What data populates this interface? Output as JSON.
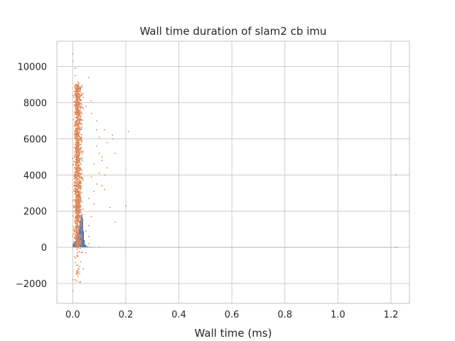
{
  "chart_data": {
    "type": "scatter",
    "title": "Wall time duration of slam2 cb imu",
    "xlabel": "Wall time (ms)",
    "ylabel": "",
    "xlim": [
      -0.06,
      1.27
    ],
    "ylim": [
      -3100,
      11400
    ],
    "grid": true,
    "x_ticks": [
      0.0,
      0.2,
      0.4,
      0.6,
      0.8,
      1.0,
      1.2
    ],
    "x_tick_labels": [
      "0.0",
      "0.2",
      "0.4",
      "0.6",
      "0.8",
      "1.0",
      "1.2"
    ],
    "y_ticks": [
      -2000,
      0,
      2000,
      4000,
      6000,
      8000,
      10000
    ],
    "y_tick_labels": [
      "−2000",
      "0",
      "2000",
      "4000",
      "6000",
      "8000",
      "10000"
    ],
    "series": [
      {
        "kind": "histogram",
        "color": "#4c72b0",
        "bars": [
          {
            "x0": 0.0,
            "x1": 0.003,
            "count": 200
          },
          {
            "x0": 0.003,
            "x1": 0.006,
            "count": 250
          },
          {
            "x0": 0.006,
            "x1": 0.009,
            "count": 300
          },
          {
            "x0": 0.009,
            "x1": 0.012,
            "count": 350
          },
          {
            "x0": 0.012,
            "x1": 0.015,
            "count": 450
          },
          {
            "x0": 0.015,
            "x1": 0.018,
            "count": 600
          },
          {
            "x0": 0.018,
            "x1": 0.021,
            "count": 800
          },
          {
            "x0": 0.021,
            "x1": 0.024,
            "count": 1000
          },
          {
            "x0": 0.024,
            "x1": 0.027,
            "count": 1250
          },
          {
            "x0": 0.027,
            "x1": 0.03,
            "count": 1500
          },
          {
            "x0": 0.03,
            "x1": 0.033,
            "count": 1750
          },
          {
            "x0": 0.033,
            "x1": 0.036,
            "count": 1850
          },
          {
            "x0": 0.036,
            "x1": 0.039,
            "count": 1600
          },
          {
            "x0": 0.039,
            "x1": 0.042,
            "count": 900
          },
          {
            "x0": 0.042,
            "x1": 0.045,
            "count": 400
          },
          {
            "x0": 0.045,
            "x1": 0.05,
            "count": 150
          },
          {
            "x0": 0.05,
            "x1": 0.056,
            "count": 60
          },
          {
            "x0": 0.056,
            "x1": 0.065,
            "count": 25
          },
          {
            "x0": 0.065,
            "x1": 0.08,
            "count": 10
          }
        ]
      },
      {
        "kind": "scatter",
        "color": "#dd8452",
        "main_cluster": {
          "x_mean": 0.018,
          "x_sd": 0.008,
          "y_min": -2000,
          "y_max": 9500,
          "count": 1400
        },
        "extra_points": [
          [
            0.0,
            10700
          ],
          [
            0.0,
            10300
          ],
          [
            0.0,
            -2400
          ],
          [
            0.0,
            -1800
          ],
          [
            0.01,
            9900
          ],
          [
            0.01,
            9500
          ],
          [
            0.06,
            9400
          ],
          [
            0.03,
            8800
          ],
          [
            0.07,
            8100
          ],
          [
            0.07,
            7400
          ],
          [
            0.09,
            7000
          ],
          [
            0.09,
            6500
          ],
          [
            0.1,
            6100
          ],
          [
            0.12,
            6500
          ],
          [
            0.15,
            6200
          ],
          [
            0.15,
            6000
          ],
          [
            0.13,
            5800
          ],
          [
            0.16,
            5200
          ],
          [
            0.21,
            6400
          ],
          [
            0.09,
            5600
          ],
          [
            0.1,
            5200
          ],
          [
            0.11,
            4800
          ],
          [
            0.13,
            4400
          ],
          [
            0.08,
            4600
          ],
          [
            0.1,
            4100
          ],
          [
            0.12,
            4000
          ],
          [
            0.07,
            3900
          ],
          [
            0.09,
            3500
          ],
          [
            0.11,
            3400
          ],
          [
            0.12,
            3200
          ],
          [
            0.08,
            3100
          ],
          [
            0.14,
            2200
          ],
          [
            0.2,
            2300
          ],
          [
            0.16,
            1400
          ],
          [
            0.07,
            1700
          ],
          [
            0.06,
            1200
          ],
          [
            0.05,
            900
          ],
          [
            0.06,
            600
          ],
          [
            0.08,
            2400
          ],
          [
            0.06,
            2700
          ],
          [
            0.11,
            5000
          ],
          [
            0.05,
            7800
          ],
          [
            0.04,
            8300
          ],
          [
            0.02,
            400
          ],
          [
            0.02,
            -300
          ],
          [
            0.01,
            -600
          ],
          [
            0.03,
            -800
          ],
          [
            0.04,
            -1200
          ],
          [
            0.05,
            -300
          ],
          [
            0.06,
            200
          ],
          [
            0.1,
            0
          ],
          [
            1.22,
            4000
          ],
          [
            1.22,
            0
          ]
        ]
      }
    ]
  }
}
